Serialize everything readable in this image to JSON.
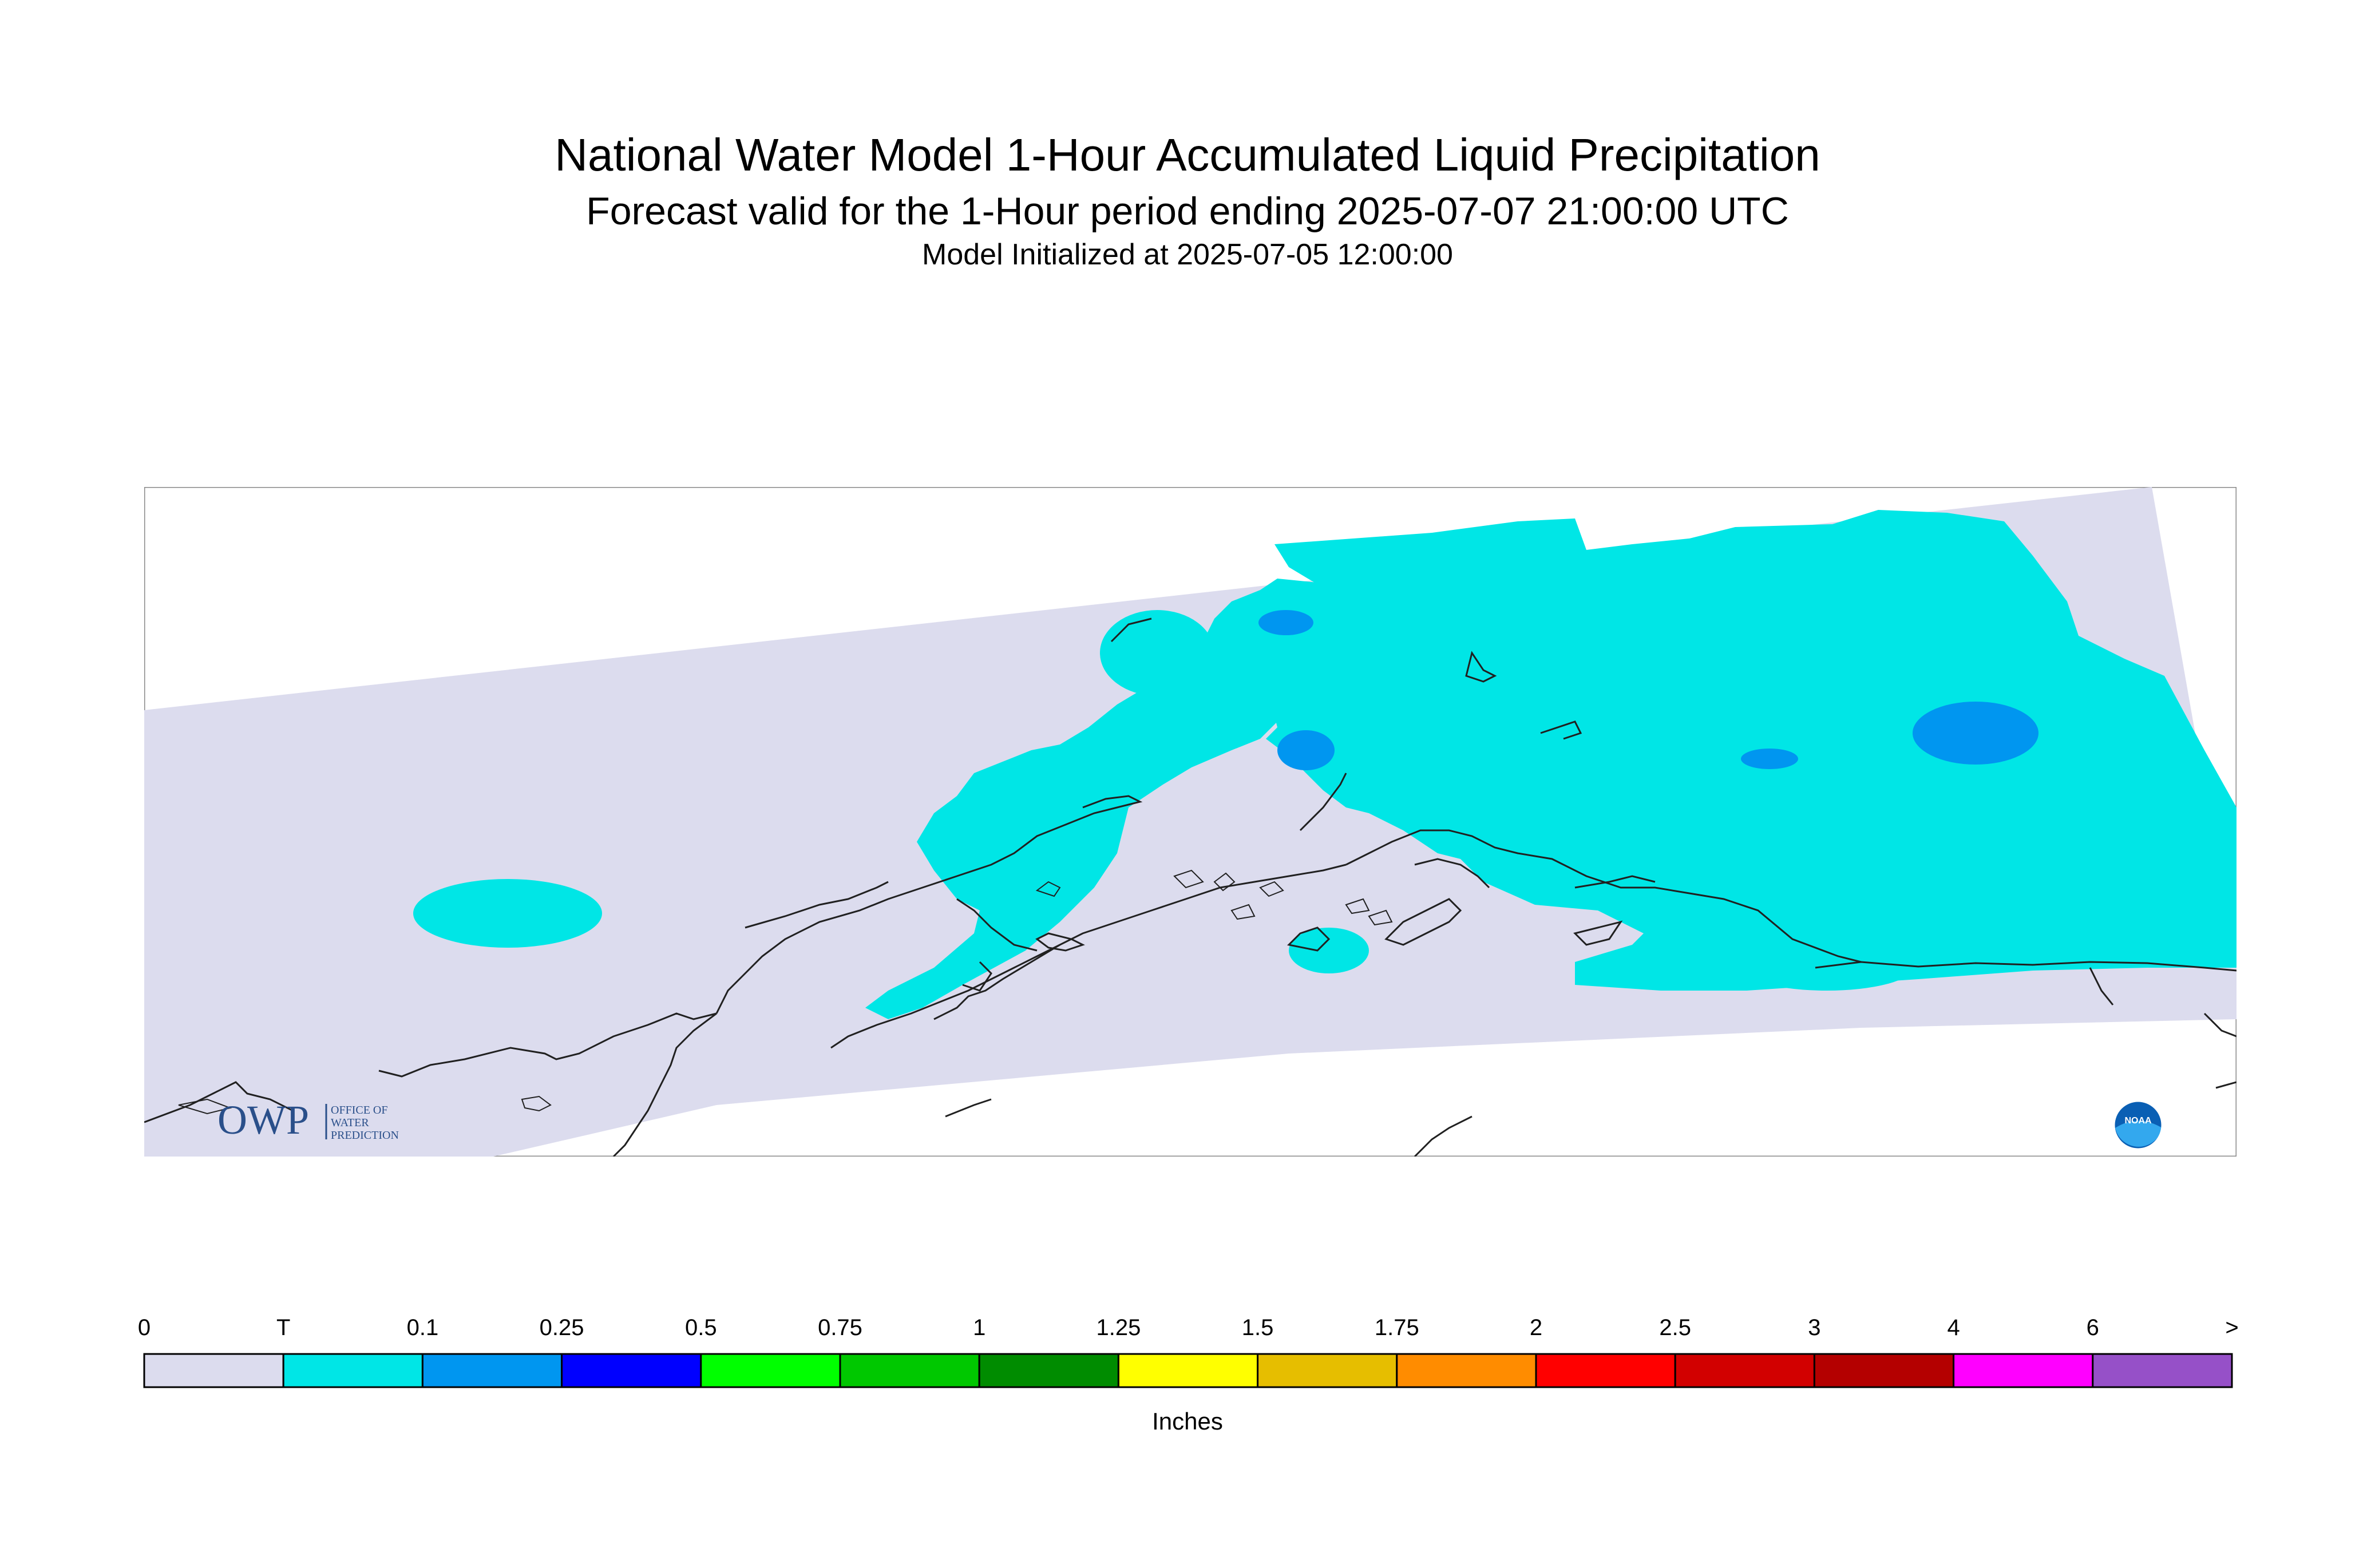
{
  "header": {
    "title": "National Water Model 1-Hour Accumulated Liquid Precipitation",
    "subtitle": "Forecast valid for the 1-Hour period ending 2025-07-07 21:00:00 UTC",
    "init": "Model Initialized at 2025-07-05 12:00:00"
  },
  "logos": {
    "owp_main": "OWP",
    "owp_line1": "OFFICE OF",
    "owp_line2": "WATER",
    "owp_line3": "PREDICTION",
    "noaa": "NOAA"
  },
  "legend": {
    "units": "Inches",
    "labels": [
      "0",
      "T",
      "0.1",
      "0.25",
      "0.5",
      "0.75",
      "1",
      "1.25",
      "1.5",
      "1.75",
      "2",
      "2.5",
      "3",
      "4",
      "6",
      ">"
    ],
    "colors": [
      "#dcdcee",
      "#00e6e6",
      "#0096f0",
      "#0000ff",
      "#00ff00",
      "#00c800",
      "#008c00",
      "#ffff00",
      "#e6be00",
      "#ff8c00",
      "#ff0000",
      "#d20000",
      "#b40000",
      "#ff00ff",
      "#9650c8"
    ]
  },
  "colors": {
    "nodata_domain": "#dcdcee",
    "trace": "#00e6e6",
    "light": "#0096f0",
    "coast": "#202020"
  }
}
